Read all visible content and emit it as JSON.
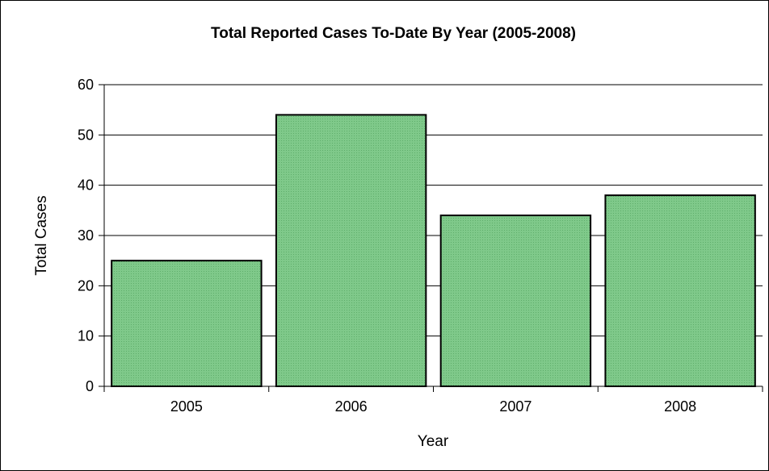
{
  "chart_data": {
    "type": "bar",
    "title": "Total Reported Cases To-Date By Year (2005-2008)",
    "xlabel": "Year",
    "ylabel": "Total Cases",
    "categories": [
      "2005",
      "2006",
      "2007",
      "2008"
    ],
    "values": [
      25,
      54,
      34,
      38
    ],
    "ylim": [
      0,
      60
    ],
    "yticks": [
      0,
      10,
      20,
      30,
      40,
      50,
      60
    ],
    "grid": true,
    "legend": "none",
    "bar_color": "#7fc98a",
    "bar_pattern_color": "#5fae6b",
    "bar_edge_color": "#000000"
  }
}
